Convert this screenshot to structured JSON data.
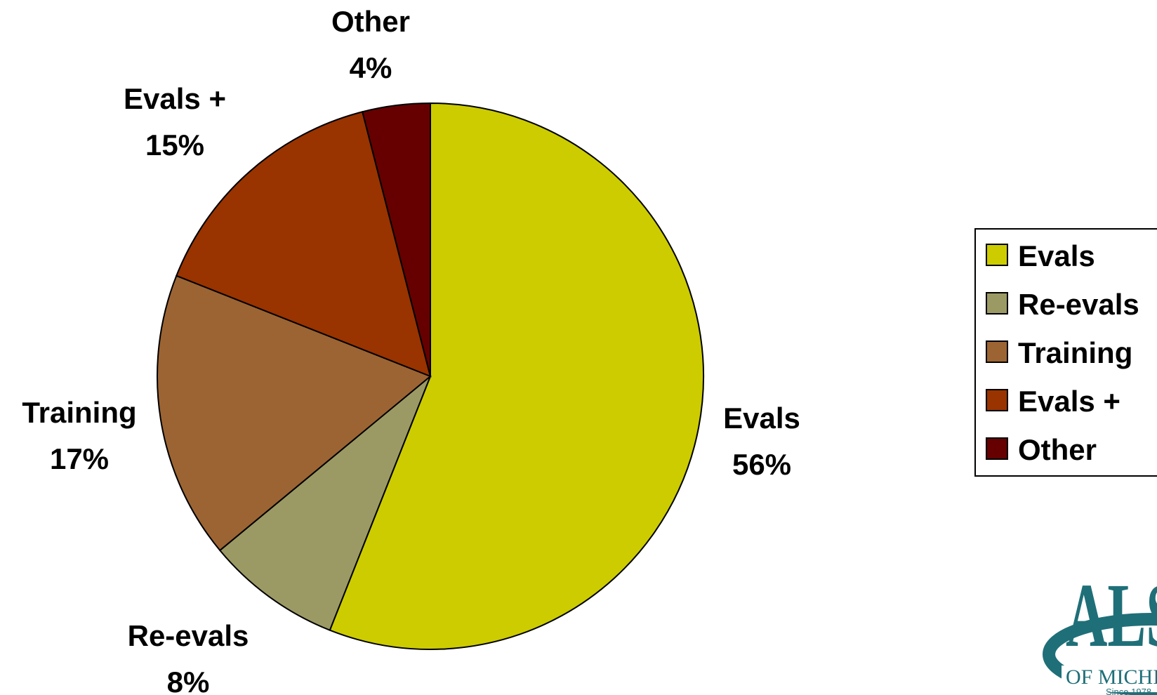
{
  "chart_data": {
    "type": "pie",
    "title": "",
    "categories": [
      "Evals",
      "Re-evals",
      "Training",
      "Evals +",
      "Other"
    ],
    "values": [
      56,
      8,
      17,
      15,
      4
    ],
    "labels": [
      "56%",
      "8%",
      "17%",
      "15%",
      "4%"
    ],
    "colors": [
      "#CCCC00",
      "#9C9A64",
      "#9C6433",
      "#993300",
      "#660000"
    ],
    "legend": {
      "placement": "right",
      "entries": [
        "Evals",
        "Re-evals",
        "Training",
        "Evals +",
        "Other"
      ]
    }
  },
  "logo": {
    "text": "ALS",
    "subtitle": "OF MICHIGAN",
    "since": "Since 1978",
    "color": "#1F6F78"
  }
}
